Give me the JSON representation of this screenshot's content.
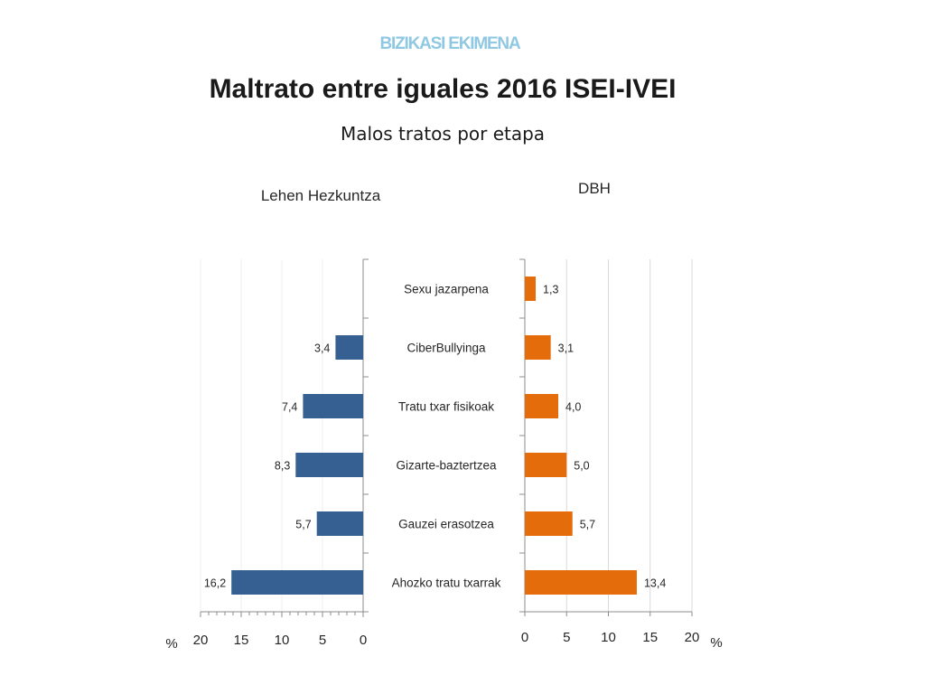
{
  "header": {
    "org": "BIZIKASI EKIMENA",
    "title": "Maltrato entre iguales 2016  ISEI-IVEI",
    "subtitle": "Malos tratos por etapa"
  },
  "colors": {
    "primary": "#376092",
    "secondary": "#e46c0a",
    "org": "#8fc8e2"
  },
  "chart_data": [
    {
      "type": "bar",
      "orientation": "horizontal",
      "x_reversed": true,
      "title": "Lehen Hezkuntza",
      "xlabel": "%",
      "xlim": [
        0,
        20
      ],
      "ticks": [
        20,
        15,
        10,
        5,
        0
      ],
      "categories": [
        "Sexu jazarpena",
        "CiberBullyinga",
        "Tratu txar fisikoak",
        "Gizarte-baztertzea",
        "Gauzei erasotzea",
        "Ahozko tratu txarrak"
      ],
      "values": [
        null,
        3.4,
        7.4,
        8.3,
        5.7,
        16.2
      ],
      "labels": [
        "",
        "3,4",
        "7,4",
        "8,3",
        "5,7",
        "16,2"
      ],
      "color": "#376092",
      "grid": false
    },
    {
      "type": "bar",
      "orientation": "horizontal",
      "title": "DBH",
      "xlabel": "%",
      "xlim": [
        0,
        20
      ],
      "ticks": [
        0,
        5,
        10,
        15,
        20
      ],
      "categories": [
        "Sexu jazarpena",
        "CiberBullyinga",
        "Tratu txar fisikoak",
        "Gizarte-baztertzea",
        "Gauzei erasotzea",
        "Ahozko tratu txarrak"
      ],
      "values": [
        1.3,
        3.1,
        4.0,
        5.0,
        5.7,
        13.4
      ],
      "labels": [
        "1,3",
        "3,1",
        "4,0",
        "5,0",
        "5,7",
        "13,4"
      ],
      "color": "#e46c0a",
      "grid": true
    }
  ]
}
